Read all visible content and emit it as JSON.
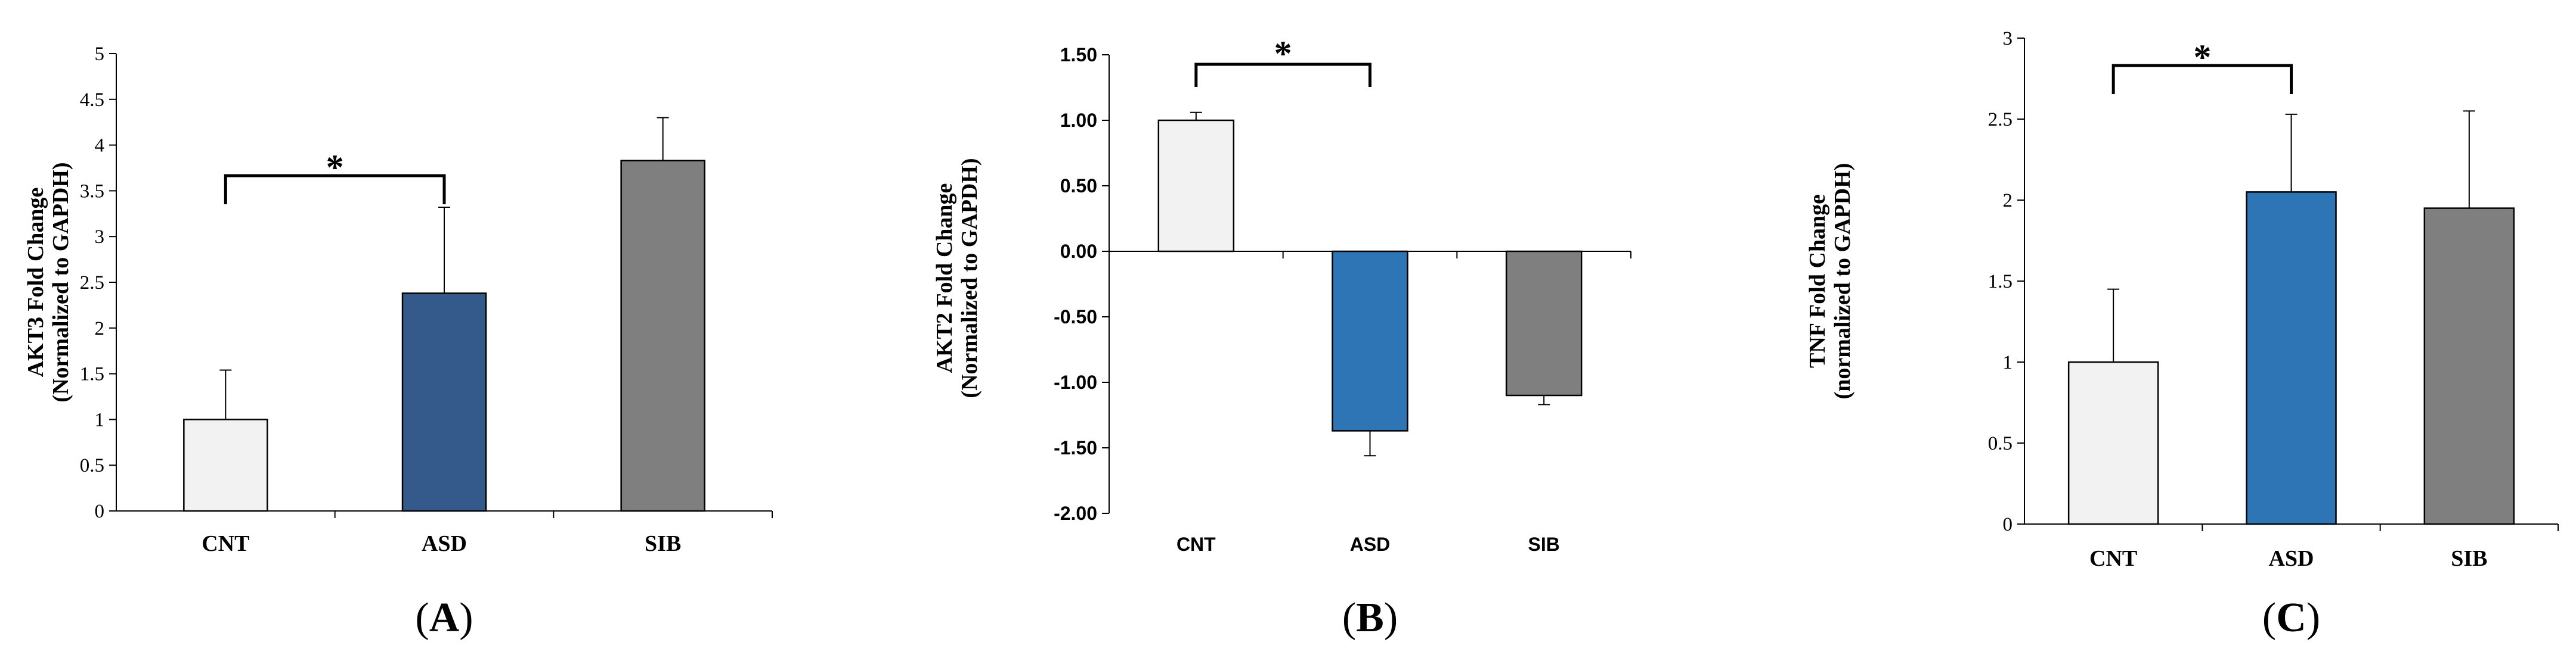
{
  "chart_data": [
    {
      "panel": "A",
      "type": "bar",
      "categories": [
        "CNT",
        "ASD",
        "SIB"
      ],
      "values": [
        1.0,
        2.38,
        3.83
      ],
      "errors": [
        0.54,
        0.94,
        0.47
      ],
      "colors": [
        "#f2f2f2",
        "#335a8a",
        "#7f7f7f"
      ],
      "ylabel_line1": "AKT3 Fold Change",
      "ylabel_line2": "(Normalized to GAPDH)",
      "ylim": [
        0,
        5
      ],
      "yticks": [
        "0",
        "0.5",
        "1",
        "1.5",
        "2",
        "2.5",
        "3",
        "3.5",
        "4",
        "4.5",
        "5"
      ],
      "significance": {
        "from": 0,
        "to": 1,
        "label": "*"
      },
      "panel_label": "A"
    },
    {
      "panel": "B",
      "type": "bar",
      "categories": [
        "CNT",
        "ASD",
        "SIB"
      ],
      "values": [
        1.0,
        -1.37,
        -1.1
      ],
      "errors": [
        0.06,
        0.19,
        0.07
      ],
      "colors": [
        "#f2f2f2",
        "#2e75b6",
        "#7f7f7f"
      ],
      "ylabel_line1": "AKT2 Fold Change",
      "ylabel_line2": "(Normalized to GAPDH)",
      "ylim": [
        -2,
        1.5
      ],
      "yticks": [
        "-2.00",
        "-1.50",
        "-1.00",
        "-0.50",
        "0.00",
        "0.50",
        "1.00",
        "1.50"
      ],
      "significance": {
        "from": 0,
        "to": 1,
        "label": "*"
      },
      "panel_label": "B"
    },
    {
      "panel": "C",
      "type": "bar",
      "categories": [
        "CNT",
        "ASD",
        "SIB"
      ],
      "values": [
        1.0,
        2.05,
        1.95
      ],
      "errors": [
        0.45,
        0.48,
        0.6
      ],
      "colors": [
        "#f2f2f2",
        "#2e75b6",
        "#7f7f7f"
      ],
      "ylabel_line1": "TNF Fold Change",
      "ylabel_line2": "(normalized to GAPDH)",
      "ylim": [
        0,
        3
      ],
      "yticks": [
        "0",
        "0.5",
        "1",
        "1.5",
        "2",
        "2.5",
        "3"
      ],
      "significance": {
        "from": 0,
        "to": 1,
        "label": "*"
      },
      "panel_label": "C"
    }
  ]
}
